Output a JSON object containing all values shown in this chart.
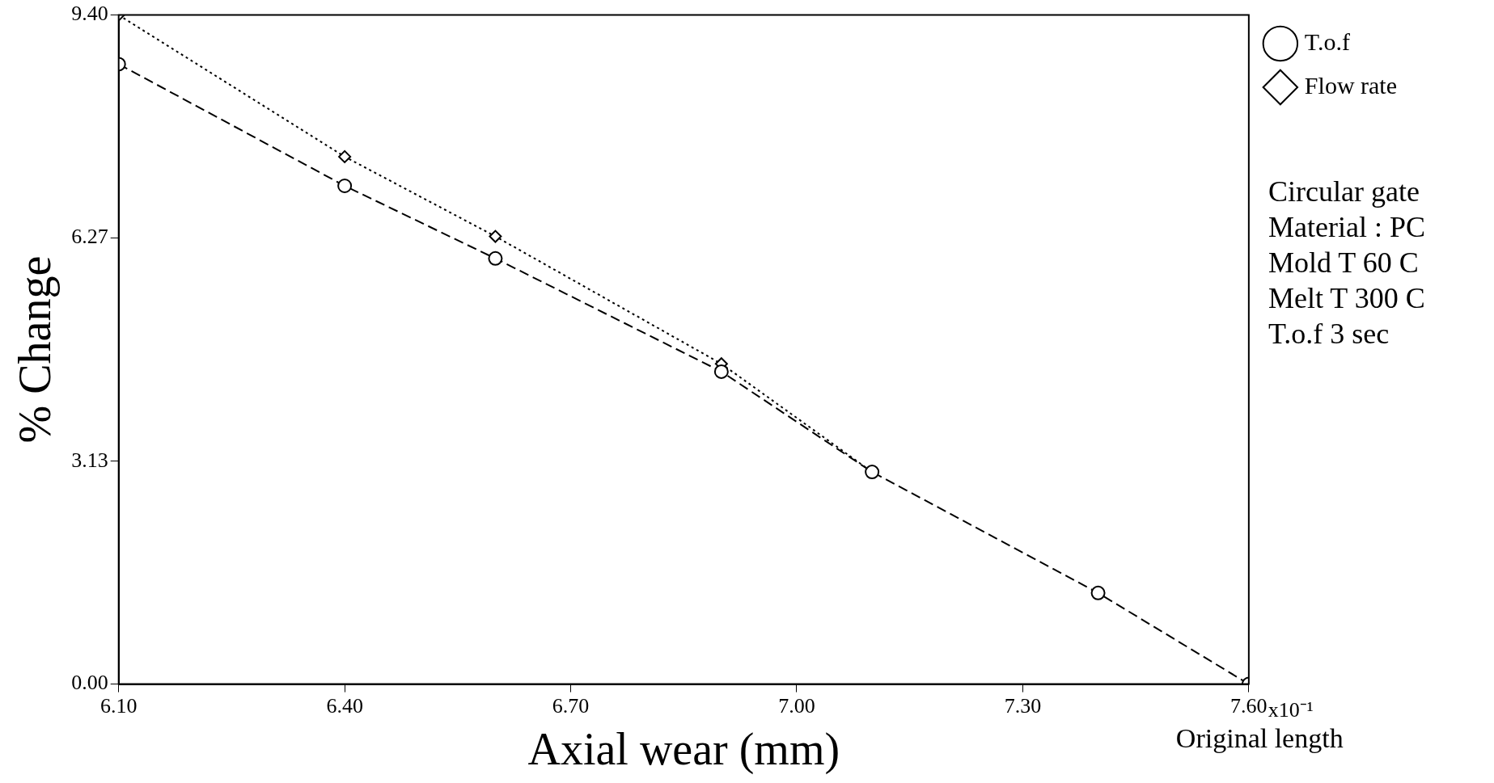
{
  "chart_data": {
    "type": "line",
    "xlabel": "Axial wear (mm)",
    "ylabel": "% Change",
    "xlim": [
      6.1,
      7.6
    ],
    "xticks": [
      {
        "value": 6.1,
        "label": "6.10"
      },
      {
        "value": 6.4,
        "label": "6.40"
      },
      {
        "value": 6.7,
        "label": "6.70"
      },
      {
        "value": 7.0,
        "label": "7.00"
      },
      {
        "value": 7.3,
        "label": "7.30"
      },
      {
        "value": 7.6,
        "label": "7.60"
      }
    ],
    "ylim": [
      0,
      9.4
    ],
    "yticks": [
      {
        "value": 0,
        "label": "0.00"
      },
      3.13,
      6.27,
      {
        "value": 9.4,
        "label": "9.40"
      }
    ],
    "grid": false,
    "legend": "top right",
    "series": [
      {
        "name": "T.o.f",
        "color": "#000000",
        "marker": "circle",
        "line_style": "dashed",
        "x": [
          6.1,
          6.4,
          6.6,
          6.9,
          7.1,
          7.4,
          7.6
        ],
        "values": [
          8.71,
          7.0,
          5.98,
          4.39,
          2.98,
          1.28,
          0
        ]
      },
      {
        "name": "Flow rate",
        "color": "#000000",
        "marker": "diamond",
        "line_style": "dotted",
        "x": [
          6.1,
          6.4,
          6.6,
          6.9,
          7.1
        ],
        "values": [
          9.4,
          7.41,
          6.29,
          4.5,
          2.98
        ]
      }
    ],
    "annotations": [
      "x10⁻¹",
      "Original length",
      "Circular gate",
      "Material : PC",
      "Mold T 60 C",
      "Melt T 300 C",
      "T.o.f 3 sec"
    ]
  }
}
